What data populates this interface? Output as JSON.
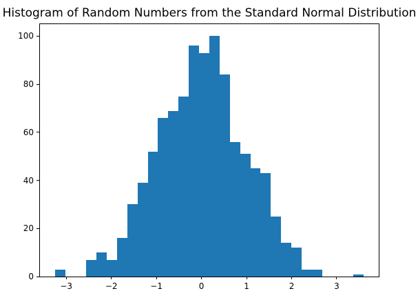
{
  "colors": {
    "bar": "#1f77b4",
    "spine": "#000000",
    "background": "#ffffff",
    "text": "#000000"
  },
  "chart_data": {
    "type": "bar",
    "subtype": "histogram",
    "title": "Histogram of Random Numbers from the Standard Normal Distribution",
    "xlabel": "",
    "ylabel": "",
    "grid": false,
    "legend": null,
    "bin_start": -3.242,
    "bin_width": 0.2277,
    "counts": [
      3,
      0,
      0,
      7,
      10,
      7,
      16,
      30,
      39,
      52,
      66,
      69,
      75,
      96,
      93,
      100,
      84,
      56,
      51,
      45,
      43,
      25,
      14,
      12,
      3,
      3,
      0,
      0,
      0,
      1
    ],
    "xlim": [
      -3.584,
      3.932
    ],
    "ylim": [
      0,
      105
    ],
    "x_ticks": [
      {
        "value": -3,
        "label": "−3"
      },
      {
        "value": -2,
        "label": "−2"
      },
      {
        "value": -1,
        "label": "−1"
      },
      {
        "value": 0,
        "label": "0"
      },
      {
        "value": 1,
        "label": "1"
      },
      {
        "value": 2,
        "label": "2"
      },
      {
        "value": 3,
        "label": "3"
      }
    ],
    "y_ticks": [
      {
        "value": 0,
        "label": "0"
      },
      {
        "value": 20,
        "label": "20"
      },
      {
        "value": 40,
        "label": "40"
      },
      {
        "value": 60,
        "label": "60"
      },
      {
        "value": 80,
        "label": "80"
      },
      {
        "value": 100,
        "label": "100"
      }
    ]
  }
}
